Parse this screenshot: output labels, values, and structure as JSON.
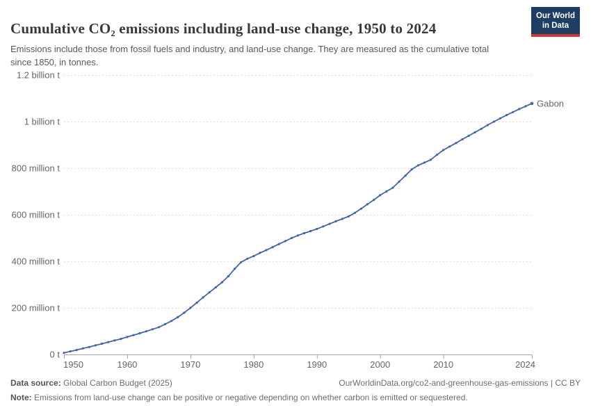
{
  "header": {
    "title": "Cumulative CO₂ emissions including land-use change, 1950 to 2024",
    "subtitle": "Emissions include those from fossil fuels and industry, and land-use change. They are measured as the cumulative total since 1850, in tonnes.",
    "logo": {
      "line1": "Our World",
      "line2": "in Data"
    }
  },
  "chart_data": {
    "type": "line",
    "title": "Cumulative CO₂ emissions including land-use change, 1950 to 2024",
    "unit": "tonnes",
    "values_unit": "million tonnes",
    "xlim": [
      1950,
      2024
    ],
    "ylim": [
      0,
      1200
    ],
    "grid": "horizontal dashed",
    "legend_position": "end-of-line label",
    "x_ticks": [
      {
        "value": 1950,
        "label": "1950"
      },
      {
        "value": 1960,
        "label": "1960"
      },
      {
        "value": 1970,
        "label": "1970"
      },
      {
        "value": 1980,
        "label": "1980"
      },
      {
        "value": 1990,
        "label": "1990"
      },
      {
        "value": 2000,
        "label": "2000"
      },
      {
        "value": 2010,
        "label": "2010"
      },
      {
        "value": 2024,
        "label": "2024"
      }
    ],
    "y_ticks": [
      {
        "value": 0,
        "label": "0 t"
      },
      {
        "value": 200,
        "label": "200 million t"
      },
      {
        "value": 400,
        "label": "400 million t"
      },
      {
        "value": 600,
        "label": "600 million t"
      },
      {
        "value": 800,
        "label": "800 million t"
      },
      {
        "value": 1000,
        "label": "1 billion t"
      },
      {
        "value": 1200,
        "label": "1.2 billion t"
      }
    ],
    "series": [
      {
        "name": "Gabon",
        "color": "#4165a5",
        "x": [
          1950,
          1951,
          1952,
          1953,
          1954,
          1955,
          1956,
          1957,
          1958,
          1959,
          1960,
          1961,
          1962,
          1963,
          1964,
          1965,
          1966,
          1967,
          1968,
          1969,
          1970,
          1971,
          1972,
          1973,
          1974,
          1975,
          1976,
          1977,
          1978,
          1979,
          1980,
          1981,
          1982,
          1983,
          1984,
          1985,
          1986,
          1987,
          1988,
          1989,
          1990,
          1991,
          1992,
          1993,
          1994,
          1995,
          1996,
          1997,
          1998,
          1999,
          2000,
          2001,
          2002,
          2003,
          2004,
          2005,
          2006,
          2007,
          2008,
          2009,
          2010,
          2011,
          2012,
          2013,
          2014,
          2015,
          2016,
          2017,
          2018,
          2019,
          2020,
          2021,
          2022,
          2023,
          2024
        ],
        "values": [
          7,
          13,
          19,
          26,
          32,
          39,
          46,
          53,
          60,
          67,
          75,
          83,
          91,
          99,
          108,
          117,
          130,
          144,
          160,
          179,
          200,
          222,
          245,
          267,
          288,
          310,
          336,
          368,
          396,
          411,
          422,
          436,
          448,
          461,
          474,
          487,
          500,
          511,
          521,
          530,
          539,
          550,
          561,
          572,
          582,
          593,
          608,
          626,
          645,
          664,
          684,
          700,
          716,
          742,
          768,
          795,
          812,
          824,
          836,
          858,
          878,
          893,
          908,
          924,
          939,
          954,
          969,
          985,
          1000,
          1014,
          1028,
          1041,
          1054,
          1066,
          1078
        ]
      }
    ]
  },
  "footer": {
    "source_label": "Data source:",
    "source_value": " Global Carbon Budget (2025)",
    "link": "OurWorldinData.org/co2-and-greenhouse-gas-emissions | CC BY",
    "note_label": "Note:",
    "note_value": " Emissions from land-use change can be positive or negative depending on whether carbon is emitted or sequestered."
  },
  "colors": {
    "line": "#4165a5",
    "grid": "#dddddd",
    "axis": "#a6a6a6",
    "tick_text": "#666666",
    "logo_bg": "#1d3d63",
    "logo_bar": "#cd3731"
  }
}
